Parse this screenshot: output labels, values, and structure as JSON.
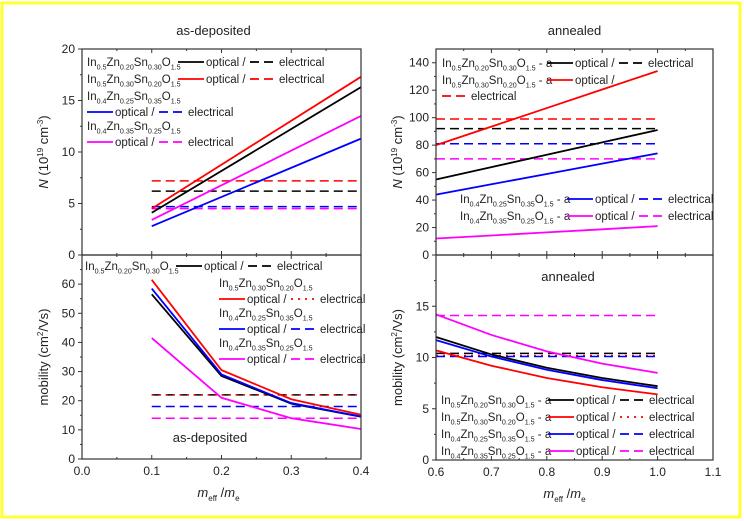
{
  "frame_color": "#ffff33",
  "legend_labels": {
    "optical": "optical /",
    "electrical": "electrical"
  },
  "chart_data": [
    {
      "id": "N-as-deposited",
      "type": "line",
      "title": "as-deposited",
      "ylabel": [
        {
          "t": "N",
          "s": "i"
        },
        {
          "t": " (10"
        },
        {
          "t": "19",
          "s": "sup"
        },
        {
          "t": " cm"
        },
        {
          "t": "-3",
          "s": "sup"
        },
        {
          "t": ")"
        }
      ],
      "xlabel": null,
      "xlim": [
        0.0,
        0.4
      ],
      "ylim": [
        0,
        20
      ],
      "xticks": [],
      "xtick_positions": [
        0.0,
        0.1,
        0.2,
        0.3,
        0.4
      ],
      "yticks": [
        0,
        5,
        10,
        15,
        20
      ],
      "series": [
        {
          "compound": [
            [
              "In",
              "0.5"
            ],
            [
              "Zn",
              "0.20"
            ],
            [
              "Sn",
              "0.30"
            ],
            [
              "O",
              "1.5"
            ]
          ],
          "suffix": "",
          "color": "#000000",
          "x": [
            0.1,
            0.4
          ],
          "optical": [
            4.1,
            16.3
          ],
          "electrical": 6.2,
          "electrical_style": "dashed"
        },
        {
          "compound": [
            [
              "In",
              "0.5"
            ],
            [
              "Zn",
              "0.30"
            ],
            [
              "Sn",
              "0.20"
            ],
            [
              "O",
              "1.5"
            ]
          ],
          "suffix": "",
          "color": "#ff0000",
          "x": [
            0.1,
            0.4
          ],
          "optical": [
            4.5,
            17.3
          ],
          "electrical": 7.2,
          "electrical_style": "dashed"
        },
        {
          "compound": [
            [
              "In",
              "0.4"
            ],
            [
              "Zn",
              "0.25"
            ],
            [
              "Sn",
              "0.35"
            ],
            [
              "O",
              "1.5"
            ]
          ],
          "suffix": "",
          "color": "#0000ff",
          "x": [
            0.1,
            0.4
          ],
          "optical": [
            2.8,
            11.3
          ],
          "electrical": 4.7,
          "electrical_style": "dashed"
        },
        {
          "compound": [
            [
              "In",
              "0.4"
            ],
            [
              "Zn",
              "0.35"
            ],
            [
              "Sn",
              "0.25"
            ],
            [
              "O",
              "1.5"
            ]
          ],
          "suffix": "",
          "color": "#ff00ff",
          "x": [
            0.1,
            0.4
          ],
          "optical": [
            3.4,
            13.5
          ],
          "electrical": 4.5,
          "electrical_style": "dashed"
        }
      ]
    },
    {
      "id": "N-annealed",
      "type": "line",
      "title": "annealed",
      "ylabel": [
        {
          "t": "N",
          "s": "i"
        },
        {
          "t": " (10"
        },
        {
          "t": "19",
          "s": "sup"
        },
        {
          "t": " cm"
        },
        {
          "t": "-3",
          "s": "sup"
        },
        {
          "t": ")"
        }
      ],
      "xlabel": null,
      "xlim": [
        0.6,
        1.1
      ],
      "ylim": [
        0,
        150
      ],
      "xticks": [],
      "xtick_positions": [
        0.6,
        0.7,
        0.8,
        0.9,
        1.0,
        1.1
      ],
      "yticks": [
        0,
        20,
        40,
        60,
        80,
        100,
        120,
        140
      ],
      "series": [
        {
          "compound": [
            [
              "In",
              "0.5"
            ],
            [
              "Zn",
              "0.20"
            ],
            [
              "Sn",
              "0.30"
            ],
            [
              "O",
              "1.5"
            ]
          ],
          "suffix": " - a",
          "color": "#000000",
          "x": [
            0.6,
            0.7,
            0.8,
            0.9,
            1.0
          ],
          "optical": [
            55,
            64,
            73,
            82,
            91
          ],
          "electrical": 92,
          "electrical_style": "dashed"
        },
        {
          "compound": [
            [
              "In",
              "0.5"
            ],
            [
              "Zn",
              "0.30"
            ],
            [
              "Sn",
              "0.20"
            ],
            [
              "O",
              "1.5"
            ]
          ],
          "suffix": " - a",
          "color": "#ff0000",
          "x": [
            0.6,
            0.7,
            0.8,
            0.9,
            1.0
          ],
          "optical": [
            80,
            93.5,
            107,
            120.5,
            134
          ],
          "electrical": 99,
          "electrical_style": "dashed"
        },
        {
          "compound": [
            [
              "In",
              "0.4"
            ],
            [
              "Zn",
              "0.25"
            ],
            [
              "Sn",
              "0.35"
            ],
            [
              "O",
              "1.5"
            ]
          ],
          "suffix": " - a",
          "color": "#0000ff",
          "x": [
            0.6,
            0.7,
            0.8,
            0.9,
            1.0
          ],
          "optical": [
            44,
            51.5,
            59,
            66.5,
            74
          ],
          "electrical": 81,
          "electrical_style": "dashed"
        },
        {
          "compound": [
            [
              "In",
              "0.4"
            ],
            [
              "Zn",
              "0.35"
            ],
            [
              "Sn",
              "0.25"
            ],
            [
              "O",
              "1.5"
            ]
          ],
          "suffix": " - a",
          "color": "#ff00ff",
          "x": [
            0.6,
            0.7,
            0.8,
            0.9,
            1.0
          ],
          "optical": [
            12,
            14.2,
            16.5,
            18.7,
            21
          ],
          "electrical": 70,
          "electrical_style": "dashed"
        }
      ]
    },
    {
      "id": "mobility-as-deposited",
      "type": "line",
      "title": null,
      "annotation": "as-deposited",
      "ylabel": [
        {
          "t": "mobility (cm"
        },
        {
          "t": "2",
          "s": "sup"
        },
        {
          "t": "/Vs)"
        }
      ],
      "xlabel": [
        {
          "t": "m",
          "s": "i"
        },
        {
          "t": "eff",
          "s": "sub"
        },
        {
          "t": " /"
        },
        {
          "t": "m",
          "s": "i"
        },
        {
          "t": "e",
          "s": "sub"
        }
      ],
      "xlim": [
        0.0,
        0.4
      ],
      "ylim": [
        0,
        70
      ],
      "xticks": [
        "0.0",
        "0.1",
        "0.2",
        "0.3",
        "0.4"
      ],
      "xtick_positions": [
        0.0,
        0.1,
        0.2,
        0.3,
        0.4
      ],
      "yticks": [
        0,
        10,
        20,
        30,
        40,
        50,
        60
      ],
      "series": [
        {
          "compound": [
            [
              "In",
              "0.5"
            ],
            [
              "Zn",
              "0.20"
            ],
            [
              "Sn",
              "0.30"
            ],
            [
              "O",
              "1.5"
            ]
          ],
          "suffix": "",
          "color": "#000000",
          "x": [
            0.1,
            0.2,
            0.3,
            0.4
          ],
          "optical": [
            56.5,
            28.5,
            19,
            14.5
          ],
          "electrical": 22,
          "electrical_style": "dashed"
        },
        {
          "compound": [
            [
              "In",
              "0.5"
            ],
            [
              "Zn",
              "0.30"
            ],
            [
              "Sn",
              "0.20"
            ],
            [
              "O",
              "1.5"
            ]
          ],
          "suffix": "",
          "color": "#ff0000",
          "x": [
            0.1,
            0.2,
            0.3,
            0.4
          ],
          "optical": [
            61.5,
            30.5,
            20.5,
            15.2
          ],
          "electrical": 22,
          "electrical_style": "dotted"
        },
        {
          "compound": [
            [
              "In",
              "0.4"
            ],
            [
              "Zn",
              "0.25"
            ],
            [
              "Sn",
              "0.35"
            ],
            [
              "O",
              "1.5"
            ]
          ],
          "suffix": "",
          "color": "#0000ff",
          "x": [
            0.1,
            0.2,
            0.3,
            0.4
          ],
          "optical": [
            58.5,
            29,
            19.2,
            14.6
          ],
          "electrical": 18,
          "electrical_style": "dashed"
        },
        {
          "compound": [
            [
              "In",
              "0.4"
            ],
            [
              "Zn",
              "0.35"
            ],
            [
              "Sn",
              "0.25"
            ],
            [
              "O",
              "1.5"
            ]
          ],
          "suffix": "",
          "color": "#ff00ff",
          "x": [
            0.1,
            0.2,
            0.3,
            0.4
          ],
          "optical": [
            41.5,
            21,
            14,
            10.3
          ],
          "electrical": 14,
          "electrical_style": "dashed"
        }
      ]
    },
    {
      "id": "mobility-annealed",
      "type": "line",
      "title": null,
      "annotation": "annealed",
      "ylabel": [
        {
          "t": "mobility (cm"
        },
        {
          "t": "2",
          "s": "sup"
        },
        {
          "t": "/Vs)"
        }
      ],
      "xlabel": [
        {
          "t": "m",
          "s": "i"
        },
        {
          "t": "eff",
          "s": "sub"
        },
        {
          "t": " /"
        },
        {
          "t": "m",
          "s": "i"
        },
        {
          "t": "e",
          "s": "sub"
        }
      ],
      "xlim": [
        0.6,
        1.1
      ],
      "ylim": [
        0,
        20
      ],
      "xticks": [
        "0.6",
        "0.7",
        "0.8",
        "0.9",
        "1.0",
        "1.1"
      ],
      "xtick_positions": [
        0.6,
        0.7,
        0.8,
        0.9,
        1.0,
        1.1
      ],
      "yticks": [
        0,
        5,
        10,
        15
      ],
      "series": [
        {
          "compound": [
            [
              "In",
              "0.5"
            ],
            [
              "Zn",
              "0.20"
            ],
            [
              "Sn",
              "0.30"
            ],
            [
              "O",
              "1.5"
            ]
          ],
          "suffix": " - a",
          "color": "#000000",
          "x": [
            0.6,
            0.7,
            0.8,
            0.9,
            1.0
          ],
          "optical": [
            12.0,
            10.3,
            9.0,
            8.0,
            7.2
          ],
          "electrical": 10.4,
          "electrical_style": "dashed"
        },
        {
          "compound": [
            [
              "In",
              "0.5"
            ],
            [
              "Zn",
              "0.30"
            ],
            [
              "Sn",
              "0.20"
            ],
            [
              "O",
              "1.5"
            ]
          ],
          "suffix": " - a",
          "color": "#ff0000",
          "x": [
            0.6,
            0.7,
            0.8,
            0.9,
            1.0
          ],
          "optical": [
            10.7,
            9.2,
            8.0,
            7.1,
            6.4
          ],
          "electrical": 10.2,
          "electrical_style": "dotted"
        },
        {
          "compound": [
            [
              "In",
              "0.4"
            ],
            [
              "Zn",
              "0.25"
            ],
            [
              "Sn",
              "0.35"
            ],
            [
              "O",
              "1.5"
            ]
          ],
          "suffix": " - a",
          "color": "#0000ff",
          "x": [
            0.6,
            0.7,
            0.8,
            0.9,
            1.0
          ],
          "optical": [
            11.7,
            10.1,
            8.8,
            7.8,
            7.0
          ],
          "electrical": 10.1,
          "electrical_style": "dashed"
        },
        {
          "compound": [
            [
              "In",
              "0.4"
            ],
            [
              "Zn",
              "0.35"
            ],
            [
              "Sn",
              "0.25"
            ],
            [
              "O",
              "1.5"
            ]
          ],
          "suffix": " - a",
          "color": "#ff00ff",
          "x": [
            0.6,
            0.7,
            0.8,
            0.9,
            1.0
          ],
          "optical": [
            14.2,
            12.2,
            10.6,
            9.4,
            8.5
          ],
          "electrical": 14.1,
          "electrical_style": "dashed"
        }
      ]
    }
  ]
}
